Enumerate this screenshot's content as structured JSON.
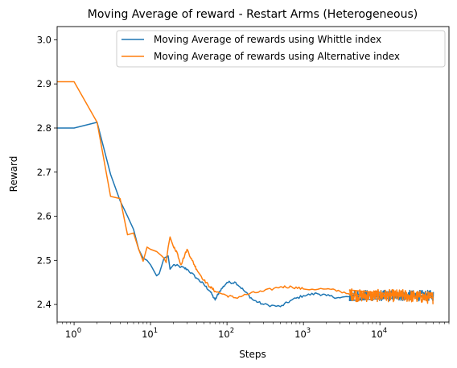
{
  "chart_data": {
    "type": "line",
    "title": "Moving Average of reward - Restart Arms (Heterogeneous)",
    "xlabel": "Steps",
    "ylabel": "Reward",
    "xscale": "log",
    "xlim": [
      0.6,
      80000
    ],
    "ylim": [
      2.36,
      3.03
    ],
    "x_ticks": [
      {
        "value": 1,
        "base": "10",
        "exp": "0"
      },
      {
        "value": 10,
        "base": "10",
        "exp": "1"
      },
      {
        "value": 100,
        "base": "10",
        "exp": "2"
      },
      {
        "value": 1000,
        "base": "10",
        "exp": "3"
      },
      {
        "value": 10000,
        "base": "10",
        "exp": "4"
      }
    ],
    "y_ticks": [
      "2.4",
      "2.5",
      "2.6",
      "2.7",
      "2.8",
      "2.9",
      "3.0"
    ],
    "grid": false,
    "legend_position": "top-right",
    "series": [
      {
        "name": "Moving Average of rewards using Whittle index",
        "color": "#1f77b4",
        "noise_from_x": 4000,
        "noise_amplitude": 0.012,
        "points": [
          [
            0.5,
            2.8
          ],
          [
            1,
            2.8
          ],
          [
            2,
            2.813
          ],
          [
            3,
            2.695
          ],
          [
            4,
            2.635
          ],
          [
            5,
            2.6
          ],
          [
            6,
            2.57
          ],
          [
            7,
            2.525
          ],
          [
            8,
            2.505
          ],
          [
            9,
            2.5
          ],
          [
            10,
            2.49
          ],
          [
            12,
            2.465
          ],
          [
            13,
            2.47
          ],
          [
            15,
            2.505
          ],
          [
            17,
            2.51
          ],
          [
            18,
            2.48
          ],
          [
            20,
            2.49
          ],
          [
            25,
            2.485
          ],
          [
            30,
            2.48
          ],
          [
            40,
            2.46
          ],
          [
            50,
            2.445
          ],
          [
            60,
            2.43
          ],
          [
            70,
            2.41
          ],
          [
            80,
            2.43
          ],
          [
            100,
            2.45
          ],
          [
            130,
            2.45
          ],
          [
            170,
            2.43
          ],
          [
            220,
            2.41
          ],
          [
            300,
            2.4
          ],
          [
            500,
            2.395
          ],
          [
            700,
            2.41
          ],
          [
            1000,
            2.42
          ],
          [
            1500,
            2.425
          ],
          [
            2000,
            2.42
          ],
          [
            3000,
            2.415
          ],
          [
            5000,
            2.42
          ],
          [
            10000,
            2.42
          ],
          [
            20000,
            2.42
          ],
          [
            50000,
            2.42
          ]
        ]
      },
      {
        "name": "Moving Average of rewards using Alternative index",
        "color": "#ff7f0e",
        "noise_from_x": 4000,
        "noise_amplitude": 0.014,
        "points": [
          [
            0.5,
            2.905
          ],
          [
            1,
            2.905
          ],
          [
            2,
            2.813
          ],
          [
            3,
            2.645
          ],
          [
            4,
            2.64
          ],
          [
            5,
            2.558
          ],
          [
            6,
            2.562
          ],
          [
            7,
            2.525
          ],
          [
            8,
            2.498
          ],
          [
            9,
            2.53
          ],
          [
            10,
            2.525
          ],
          [
            12,
            2.52
          ],
          [
            14,
            2.51
          ],
          [
            15,
            2.505
          ],
          [
            16,
            2.495
          ],
          [
            17,
            2.53
          ],
          [
            18,
            2.553
          ],
          [
            20,
            2.53
          ],
          [
            22,
            2.52
          ],
          [
            25,
            2.49
          ],
          [
            30,
            2.525
          ],
          [
            35,
            2.5
          ],
          [
            40,
            2.48
          ],
          [
            50,
            2.455
          ],
          [
            60,
            2.44
          ],
          [
            70,
            2.43
          ],
          [
            100,
            2.42
          ],
          [
            130,
            2.415
          ],
          [
            200,
            2.425
          ],
          [
            300,
            2.43
          ],
          [
            500,
            2.44
          ],
          [
            700,
            2.44
          ],
          [
            1000,
            2.435
          ],
          [
            2000,
            2.435
          ],
          [
            3000,
            2.43
          ],
          [
            5000,
            2.42
          ],
          [
            10000,
            2.42
          ],
          [
            20000,
            2.42
          ],
          [
            50000,
            2.415
          ]
        ]
      }
    ]
  }
}
